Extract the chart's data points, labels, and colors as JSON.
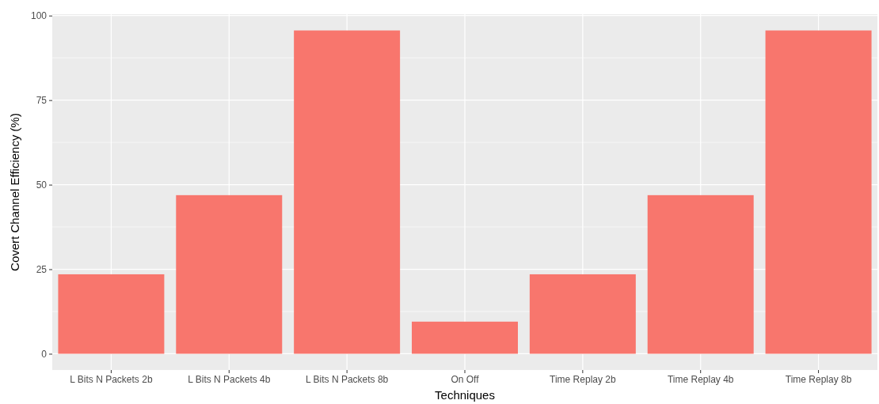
{
  "chart_data": {
    "type": "bar",
    "xlabel": "Techniques",
    "ylabel": "Covert Channel Efficiency (%)",
    "categories": [
      "L Bits N Packets 2b",
      "L Bits N Packets 4b",
      "L Bits N Packets 8b",
      "On Off",
      "Time Replay 2b",
      "Time Replay 4b",
      "Time Replay 8b"
    ],
    "values": [
      23.5,
      46.9,
      95.6,
      9.5,
      23.5,
      46.9,
      95.6
    ],
    "color": "#f8766d",
    "ylim": [
      -4.8,
      100.4
    ],
    "yticks": [
      0,
      25,
      50,
      75,
      100
    ],
    "grid": true
  }
}
